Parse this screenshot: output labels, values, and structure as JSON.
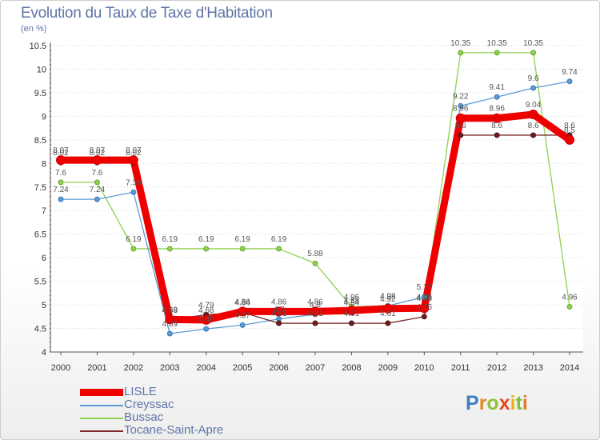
{
  "title": "Evolution du Taux de Taxe d'Habitation",
  "units": "(en %)",
  "logo": {
    "letters": [
      "P",
      "r",
      "o",
      "x",
      "i",
      "t",
      "i"
    ],
    "colors": [
      "#3f7fc0",
      "#e08a1e",
      "#8ec03b",
      "#e24a1a",
      "#e8b21a",
      "#7fbf3f",
      "#e07a2a"
    ]
  },
  "chart_data": {
    "type": "line",
    "x": [
      "2000",
      "2001",
      "2002",
      "2003",
      "2004",
      "2005",
      "2006",
      "2007",
      "2008",
      "2009",
      "2010",
      "2011",
      "2012",
      "2013",
      "2014"
    ],
    "ylim": [
      4,
      10.5
    ],
    "yticks": [
      "4",
      "4.5",
      "5",
      "5.5",
      "6",
      "6.5",
      "7",
      "7.5",
      "8",
      "8.5",
      "9",
      "9.5",
      "10",
      "10.5"
    ],
    "grid": "horizontal dotted",
    "legend_position": "bottom-left",
    "series": [
      {
        "name": "LISLE",
        "color": "#ee0000",
        "width": 9,
        "marker_fill": "#ee0000",
        "marker_stroke": "#cc0000",
        "values": [
          8.07,
          8.07,
          8.07,
          4.69,
          4.68,
          4.86,
          4.86,
          4.86,
          4.88,
          4.92,
          4.93,
          8.96,
          8.96,
          9.04,
          8.5
        ],
        "labels": [
          "8.07",
          "8.07",
          "8.07",
          "4.69",
          "4.68",
          "4.86",
          "4.86",
          "4.86",
          "4.88",
          "4.92",
          "4.93",
          "8.96",
          "8.96",
          "9.04",
          "8.5"
        ]
      },
      {
        "name": "Creyssac",
        "color": "#5b9bd5",
        "width": 1.3,
        "marker_fill": "#5b9bd5",
        "marker_stroke": "#3e7cb8",
        "values": [
          7.24,
          7.24,
          7.39,
          4.39,
          4.49,
          4.57,
          4.7,
          4.8,
          4.84,
          4.98,
          5.17,
          9.22,
          9.41,
          9.6,
          9.74
        ],
        "labels": [
          "7.24",
          "7.24",
          "7.39",
          "4.39",
          "4.49",
          "4.57",
          "4.7",
          "4.8",
          "4.84",
          "4.98",
          "5.17",
          "9.22",
          "9.41",
          "9.6",
          "9.74"
        ]
      },
      {
        "name": "Bussac",
        "color": "#8fd150",
        "width": 1.3,
        "marker_fill": "#8fd150",
        "marker_stroke": "#6aa833",
        "values": [
          7.6,
          7.6,
          6.19,
          6.19,
          6.19,
          6.19,
          6.19,
          5.88,
          4.96,
          4.98,
          4.96,
          10.35,
          10.35,
          10.35,
          4.96
        ],
        "labels": [
          "7.6",
          "7.6",
          "6.19",
          "6.19",
          "6.19",
          "6.19",
          "6.19",
          "5.88",
          "4.96",
          "4.98",
          "4.96",
          "10.35",
          "10.35",
          "10.35",
          "4.96"
        ]
      },
      {
        "name": "Tocane-Saint-Apre",
        "color": "#7b2a2a",
        "width": 1.3,
        "marker_fill": "#6b1f1f",
        "marker_stroke": "#4a1010",
        "values": [
          8.02,
          8.02,
          8.02,
          4.68,
          4.79,
          4.84,
          4.61,
          4.61,
          4.61,
          4.61,
          4.75,
          8.6,
          8.6,
          8.6,
          8.6
        ],
        "labels": [
          "8.02",
          "8.02",
          "8.02",
          "4.68",
          "4.79",
          "4.84",
          "4.61",
          "4.61",
          "4.61",
          "4.61",
          "4.75",
          "8.6",
          "8.6",
          "8.6",
          "8.6"
        ]
      }
    ]
  }
}
